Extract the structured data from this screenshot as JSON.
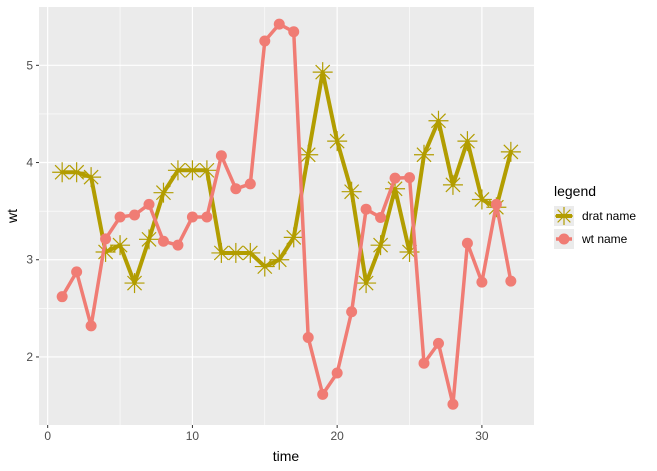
{
  "chart_data": {
    "type": "line",
    "xlabel": "time",
    "ylabel": "wt",
    "xlim": [
      -0.6,
      33.6
    ],
    "ylim": [
      1.3,
      5.6
    ],
    "x_ticks": [
      0,
      10,
      20,
      30
    ],
    "y_ticks": [
      2,
      3,
      4,
      5
    ],
    "grid": true,
    "legend": {
      "title": "legend",
      "position": "right"
    },
    "x": [
      1,
      2,
      3,
      4,
      5,
      6,
      7,
      8,
      9,
      10,
      11,
      12,
      13,
      14,
      15,
      16,
      17,
      18,
      19,
      20,
      21,
      22,
      23,
      24,
      25,
      26,
      27,
      28,
      29,
      30,
      31,
      32
    ],
    "series": [
      {
        "name": "drat name",
        "color": "#b29d00",
        "marker": "asterisk",
        "values": [
          3.9,
          3.9,
          3.85,
          3.08,
          3.15,
          2.76,
          3.21,
          3.69,
          3.92,
          3.92,
          3.92,
          3.07,
          3.07,
          3.07,
          2.93,
          3.0,
          3.23,
          4.08,
          4.93,
          4.22,
          3.7,
          2.76,
          3.15,
          3.73,
          3.08,
          4.08,
          4.43,
          3.77,
          4.22,
          3.62,
          3.54,
          4.11
        ]
      },
      {
        "name": "wt name",
        "color": "#f07c74",
        "marker": "circle",
        "values": [
          2.62,
          2.875,
          2.32,
          3.215,
          3.44,
          3.46,
          3.57,
          3.19,
          3.15,
          3.44,
          3.44,
          4.07,
          3.73,
          3.78,
          5.25,
          5.424,
          5.345,
          2.2,
          1.615,
          1.835,
          2.465,
          3.52,
          3.435,
          3.84,
          3.845,
          1.935,
          2.14,
          1.513,
          3.17,
          2.77,
          3.57,
          2.78
        ]
      }
    ]
  }
}
